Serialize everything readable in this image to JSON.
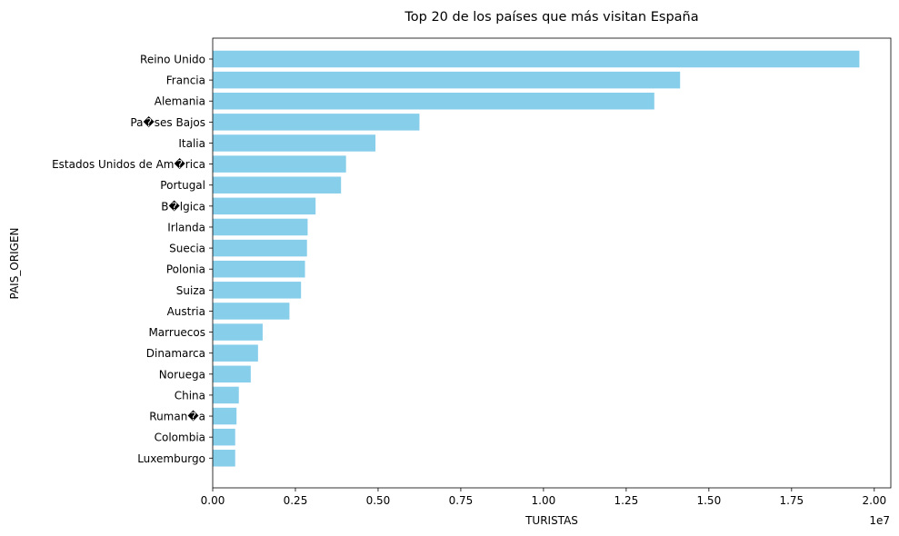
{
  "chart_data": {
    "type": "bar",
    "orientation": "horizontal",
    "title": "Top 20 de los países que más visitan España",
    "xlabel": "TURISTAS",
    "ylabel": "PAIS_ORIGEN",
    "x_offset_label": "1e7",
    "xlim": [
      0,
      20500000
    ],
    "xticks": [
      0,
      2500000,
      5000000,
      7500000,
      10000000,
      12500000,
      15000000,
      17500000,
      20000000
    ],
    "xtick_labels": [
      "0.00",
      "0.25",
      "0.50",
      "0.75",
      "1.00",
      "1.25",
      "1.50",
      "1.75",
      "2.00"
    ],
    "bar_color": "#87ceeb",
    "grid": false,
    "categories": [
      "Reino Unido",
      "Francia",
      "Alemania",
      "Pa�ses Bajos",
      "Italia",
      "Estados Unidos de Am�rica",
      "Portugal",
      "B�lgica",
      "Irlanda",
      "Suecia",
      "Polonia",
      "Suiza",
      "Austria",
      "Marruecos",
      "Dinamarca",
      "Noruega",
      "China",
      "Ruman�a",
      "Colombia",
      "Luxemburgo"
    ],
    "values": [
      19550000,
      14130000,
      13350000,
      6250000,
      4920000,
      4030000,
      3880000,
      3110000,
      2870000,
      2850000,
      2790000,
      2670000,
      2320000,
      1510000,
      1370000,
      1150000,
      790000,
      720000,
      680000,
      680000
    ]
  }
}
